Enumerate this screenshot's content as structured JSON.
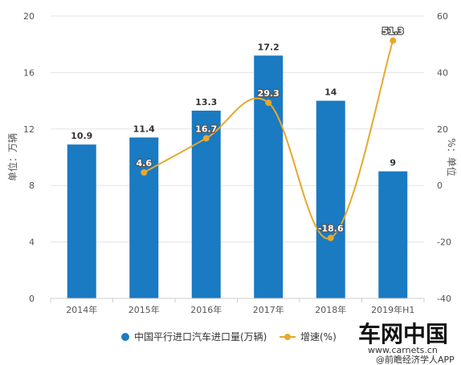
{
  "chart_data": {
    "type": "bar",
    "categories": [
      "2014年",
      "2015年",
      "2016年",
      "2017年",
      "2018年",
      "2019年H1"
    ],
    "series": [
      {
        "name": "中国平行进口汽车进口量(万辆)",
        "type": "bar",
        "axis": "left",
        "color": "#1a7ac2",
        "values": [
          10.9,
          11.4,
          13.3,
          17.2,
          14,
          9
        ],
        "labels": [
          "10.9",
          "11.4",
          "13.3",
          "17.2",
          "14",
          "9"
        ]
      },
      {
        "name": "增速(%)",
        "type": "line",
        "axis": "right",
        "color": "#e6a82e",
        "values": [
          null,
          4.6,
          16.7,
          29.3,
          -18.6,
          51.3
        ],
        "labels": [
          "",
          "4.6",
          "16.7",
          "29.3",
          "-18.6",
          "51.3"
        ]
      }
    ],
    "ylabel": "单位：万辆",
    "y2label": "%：单位",
    "ylim": [
      0,
      20
    ],
    "y2lim": [
      -40,
      60
    ],
    "yticks": [
      0,
      4,
      8,
      12,
      16,
      20
    ],
    "y2ticks": [
      -40,
      -20,
      0,
      20,
      40,
      60
    ],
    "grid": true,
    "legend_position": "bottom"
  },
  "watermark": {
    "brand": "车网中国",
    "url": "www.carnets.cn",
    "app": "@前瞻经济学人APP"
  }
}
